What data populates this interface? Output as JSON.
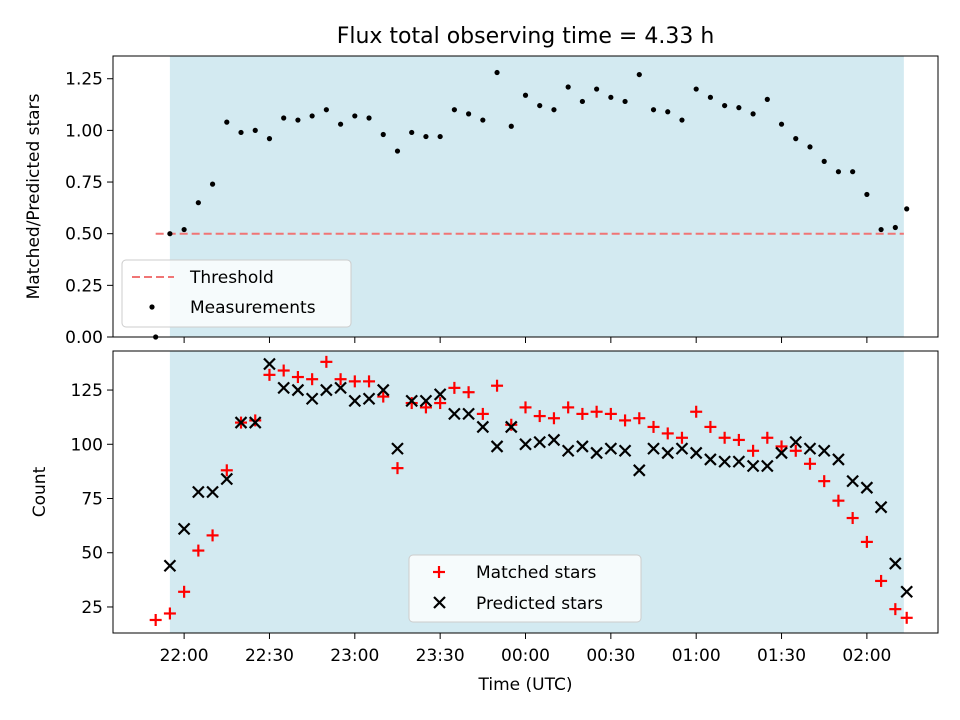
{
  "chart_data": [
    {
      "type": "scatter",
      "title": "Flux total observing time = 4.33 h",
      "xlabel": "",
      "ylabel": "Matched/Predicted stars",
      "xlim": [
        "21:35",
        "02:25"
      ],
      "ylim": [
        0,
        1.36
      ],
      "yticks": [
        "0.00",
        "0.25",
        "0.50",
        "0.75",
        "1.00",
        "1.25"
      ],
      "xticks_labeled": false,
      "shaded_interval": {
        "start": "21:55",
        "end": "02:13",
        "color": "#d3eaf1"
      },
      "threshold": {
        "name": "Threshold",
        "value": 0.5,
        "from": "21:50",
        "to": "02:13",
        "color": "#f07575",
        "style": "dashed"
      },
      "legend_position": "lower-left",
      "series": [
        {
          "name": "Measurements",
          "color": "#000000",
          "marker": "dot",
          "x": [
            "21:50",
            "21:55",
            "22:00",
            "22:05",
            "22:10",
            "22:15",
            "22:20",
            "22:25",
            "22:30",
            "22:35",
            "22:40",
            "22:45",
            "22:50",
            "22:55",
            "23:00",
            "23:05",
            "23:10",
            "23:15",
            "23:20",
            "23:25",
            "23:30",
            "23:35",
            "23:40",
            "23:45",
            "23:50",
            "23:55",
            "00:00",
            "00:05",
            "00:10",
            "00:15",
            "00:20",
            "00:25",
            "00:30",
            "00:35",
            "00:40",
            "00:45",
            "00:50",
            "00:55",
            "01:00",
            "01:05",
            "01:10",
            "01:15",
            "01:20",
            "01:25",
            "01:30",
            "01:35",
            "01:40",
            "01:45",
            "01:50",
            "01:55",
            "02:00",
            "02:05",
            "02:10",
            "02:14"
          ],
          "y": [
            0.0,
            0.5,
            0.52,
            0.65,
            0.74,
            1.04,
            0.99,
            1.0,
            0.96,
            1.06,
            1.05,
            1.07,
            1.1,
            1.03,
            1.07,
            1.06,
            0.98,
            0.9,
            0.99,
            0.97,
            0.97,
            1.1,
            1.08,
            1.05,
            1.28,
            1.02,
            1.17,
            1.12,
            1.1,
            1.21,
            1.14,
            1.2,
            1.16,
            1.14,
            1.27,
            1.1,
            1.09,
            1.05,
            1.2,
            1.16,
            1.12,
            1.11,
            1.08,
            1.15,
            1.03,
            0.96,
            0.92,
            0.85,
            0.8,
            0.8,
            0.69,
            0.52,
            0.53,
            0.62
          ]
        }
      ]
    },
    {
      "type": "scatter",
      "title": "",
      "xlabel": "Time (UTC)",
      "ylabel": "Count",
      "xlim": [
        "21:35",
        "02:25"
      ],
      "ylim": [
        13,
        143
      ],
      "yticks": [
        "25",
        "50",
        "75",
        "100",
        "125"
      ],
      "xticks": [
        "22:00",
        "22:30",
        "23:00",
        "23:30",
        "00:00",
        "00:30",
        "01:00",
        "01:30",
        "02:00"
      ],
      "shaded_interval": {
        "start": "21:55",
        "end": "02:13",
        "color": "#d3eaf1"
      },
      "legend_position": "lower-center",
      "series": [
        {
          "name": "Matched stars",
          "color": "#ff0000",
          "marker": "plus",
          "x": [
            "21:50",
            "21:55",
            "22:00",
            "22:05",
            "22:10",
            "22:15",
            "22:20",
            "22:25",
            "22:30",
            "22:35",
            "22:40",
            "22:45",
            "22:50",
            "22:55",
            "23:00",
            "23:05",
            "23:10",
            "23:15",
            "23:20",
            "23:25",
            "23:30",
            "23:35",
            "23:40",
            "23:45",
            "23:50",
            "23:55",
            "00:00",
            "00:05",
            "00:10",
            "00:15",
            "00:20",
            "00:25",
            "00:30",
            "00:35",
            "00:40",
            "00:45",
            "00:50",
            "00:55",
            "01:00",
            "01:05",
            "01:10",
            "01:15",
            "01:20",
            "01:25",
            "01:30",
            "01:35",
            "01:40",
            "01:45",
            "01:50",
            "01:55",
            "02:00",
            "02:05",
            "02:10",
            "02:14"
          ],
          "y": [
            19,
            22,
            32,
            51,
            58,
            88,
            110,
            111,
            132,
            134,
            131,
            130,
            138,
            130,
            129,
            129,
            122,
            89,
            119,
            117,
            119,
            126,
            124,
            114,
            127,
            109,
            117,
            113,
            112,
            117,
            114,
            115,
            114,
            111,
            112,
            108,
            105,
            103,
            115,
            108,
            103,
            102,
            97,
            103,
            99,
            97,
            91,
            83,
            74,
            66,
            55,
            37,
            24,
            20
          ]
        },
        {
          "name": "Predicted stars",
          "color": "#000000",
          "marker": "x",
          "x": [
            "21:55",
            "22:00",
            "22:05",
            "22:10",
            "22:15",
            "22:20",
            "22:25",
            "22:30",
            "22:35",
            "22:40",
            "22:45",
            "22:50",
            "22:55",
            "23:00",
            "23:05",
            "23:10",
            "23:15",
            "23:20",
            "23:25",
            "23:30",
            "23:35",
            "23:40",
            "23:45",
            "23:50",
            "23:55",
            "00:00",
            "00:05",
            "00:10",
            "00:15",
            "00:20",
            "00:25",
            "00:30",
            "00:35",
            "00:40",
            "00:45",
            "00:50",
            "00:55",
            "01:00",
            "01:05",
            "01:10",
            "01:15",
            "01:20",
            "01:25",
            "01:30",
            "01:35",
            "01:40",
            "01:45",
            "01:50",
            "01:55",
            "02:00",
            "02:05",
            "02:10",
            "02:14"
          ],
          "y": [
            44,
            61,
            78,
            78,
            84,
            110,
            110,
            137,
            126,
            125,
            121,
            125,
            126,
            120,
            121,
            125,
            98,
            120,
            120,
            123,
            114,
            114,
            108,
            99,
            108,
            100,
            101,
            102,
            97,
            99,
            96,
            98,
            97,
            88,
            98,
            96,
            98,
            96,
            93,
            92,
            92,
            90,
            90,
            96,
            101,
            98,
            97,
            93,
            83,
            80,
            71,
            45,
            32
          ]
        }
      ]
    }
  ]
}
